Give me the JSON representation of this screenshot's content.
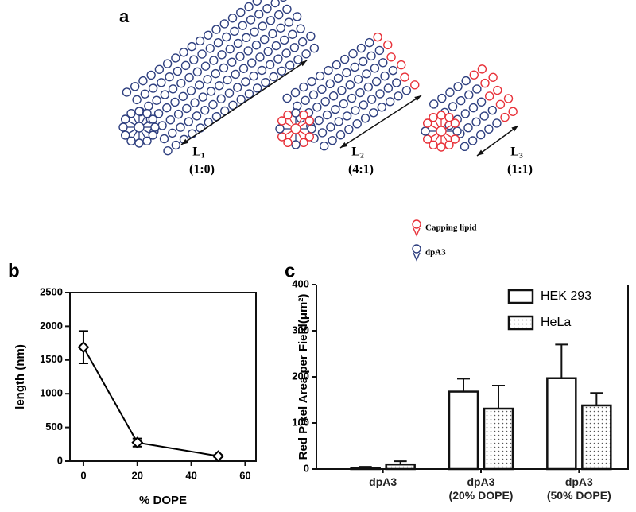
{
  "diagram": {
    "panel_label": "a",
    "cylinders": [
      {
        "label": "L₁",
        "ratio": "(1:0)"
      },
      {
        "label": "L₂",
        "ratio": "(4:1)"
      },
      {
        "label": "L₃",
        "ratio": "(1:1)"
      }
    ],
    "legend": [
      {
        "label": "Capping lipid",
        "color": "#e8323a"
      },
      {
        "label": "dpA3",
        "color": "#2e3f7f"
      }
    ]
  },
  "chart_data": [
    {
      "type": "line",
      "panel_label": "b",
      "x": [
        0,
        20,
        50
      ],
      "values": [
        1690,
        275,
        75
      ],
      "errors": [
        240,
        60,
        15
      ],
      "xlabel": "% DOPE",
      "ylabel": "length (nm)",
      "xlim": [
        -5,
        64
      ],
      "xticks": [
        0,
        20,
        40,
        60
      ],
      "ylim": [
        0,
        2500
      ],
      "yticks": [
        0,
        500,
        1000,
        1500,
        2000,
        2500
      ],
      "color": "#000000"
    },
    {
      "type": "bar",
      "panel_label": "c",
      "categories": [
        "dpA3",
        "dpA3\n(20% DOPE)",
        "dpA3\n(50% DOPE)"
      ],
      "series": [
        {
          "name": "HEK 293",
          "color": "#ffffff",
          "values": [
            3,
            168,
            197
          ],
          "errors": [
            2,
            28,
            73
          ]
        },
        {
          "name": "HeLa",
          "color": "#ffffff",
          "pattern": "dots",
          "values": [
            10,
            131,
            138
          ],
          "errors": [
            7,
            50,
            27
          ]
        }
      ],
      "ylabel": "Red Pixel Area per Field(μm²)",
      "ylim": [
        0,
        400
      ],
      "yticks": [
        0,
        100,
        200,
        300,
        400
      ],
      "legend": "top-right"
    }
  ]
}
